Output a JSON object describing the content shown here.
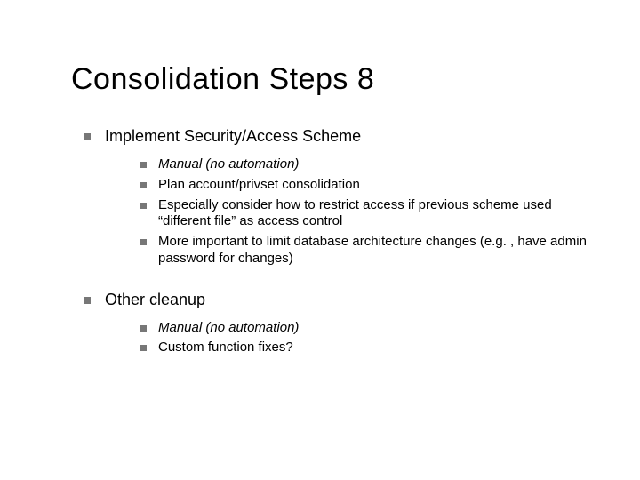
{
  "slide": {
    "title": "Consolidation Steps 8",
    "title_fontsize": 34,
    "title_color": "#000000",
    "background_color": "#ffffff",
    "bullet_color": "#777777",
    "body_text_color": "#000000",
    "level1_fontsize": 18,
    "level2_fontsize": 15,
    "sections": [
      {
        "heading": "Implement Security/Access Scheme",
        "items": [
          {
            "text": "Manual (no automation)",
            "italic": true
          },
          {
            "text": "Plan account/privset consolidation",
            "italic": false
          },
          {
            "text": "Especially consider how to restrict access if previous scheme used “different file” as access control",
            "italic": false
          },
          {
            "text": "More important to limit database architecture changes (e.g. , have admin password for changes)",
            "italic": false
          }
        ]
      },
      {
        "heading": "Other cleanup",
        "items": [
          {
            "text": "Manual (no automation)",
            "italic": true
          },
          {
            "text": "Custom function fixes?",
            "italic": false
          }
        ]
      }
    ]
  }
}
